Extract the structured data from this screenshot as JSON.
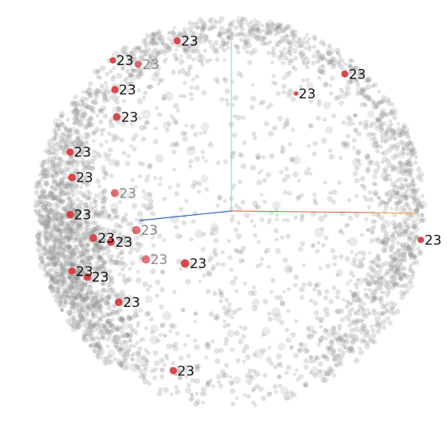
{
  "chart_data": {
    "type": "scatter",
    "title": "",
    "subtitle": "",
    "xlabel": "",
    "ylabel": "",
    "zlabel": "",
    "view": "3d-projection-points-on-sphere",
    "grid": false,
    "legend": "none",
    "axes": {
      "x": {
        "color": "#e8533a",
        "tip_color": "#f39b3a"
      },
      "y": {
        "color": "#7ee07e"
      },
      "z": {
        "color": "#2e62c4"
      }
    },
    "colors": {
      "background": "#ffffff",
      "point": "#8a8a8a",
      "highlight": "#d9343a",
      "label_front": "#111111",
      "label_back": "#888888"
    },
    "background_points": {
      "count": 3600,
      "opacity": 0.25
    },
    "highlighted": [
      {
        "label": "23",
        "x": -0.27,
        "y": 0.88,
        "z": 0.38,
        "front": true
      },
      {
        "label": "23",
        "x": -0.6,
        "y": 0.78,
        "z": 0.1,
        "front": true
      },
      {
        "label": "23",
        "x": -0.47,
        "y": 0.76,
        "z": 0.44,
        "front": false
      },
      {
        "label": "23",
        "x": -0.59,
        "y": 0.63,
        "z": 0.51,
        "front": true
      },
      {
        "label": "23",
        "x": -0.58,
        "y": 0.49,
        "z": 0.66,
        "front": true
      },
      {
        "label": "23",
        "x": 0.59,
        "y": 0.71,
        "z": 0.38,
        "front": true
      },
      {
        "label": "23",
        "x": 0.34,
        "y": 0.61,
        "z": -0.71,
        "front": true
      },
      {
        "label": "23",
        "x": -0.82,
        "y": 0.31,
        "z": 0.48,
        "front": true
      },
      {
        "label": "23",
        "x": -0.81,
        "y": 0.18,
        "z": 0.56,
        "front": true
      },
      {
        "label": "23",
        "x": -0.59,
        "y": 0.1,
        "z": 0.8,
        "front": false
      },
      {
        "label": "23",
        "x": -0.82,
        "y": -0.01,
        "z": 0.57,
        "front": true
      },
      {
        "label": "23",
        "x": -0.7,
        "y": -0.13,
        "z": 0.7,
        "front": true
      },
      {
        "label": "23",
        "x": -0.61,
        "y": -0.15,
        "z": 0.78,
        "front": true
      },
      {
        "label": "23",
        "x": -0.48,
        "y": -0.09,
        "z": 0.87,
        "front": false
      },
      {
        "label": "23",
        "x": -0.43,
        "y": -0.24,
        "z": 0.87,
        "front": false
      },
      {
        "label": "23",
        "x": -0.23,
        "y": -0.26,
        "z": 0.94,
        "front": true
      },
      {
        "label": "23",
        "x": -0.81,
        "y": -0.3,
        "z": 0.5,
        "front": true
      },
      {
        "label": "23",
        "x": -0.73,
        "y": -0.33,
        "z": 0.6,
        "front": true
      },
      {
        "label": "23",
        "x": -0.57,
        "y": -0.46,
        "z": 0.68,
        "front": true
      },
      {
        "label": "23",
        "x": -0.29,
        "y": -0.81,
        "z": 0.51,
        "front": true
      },
      {
        "label": "23",
        "x": 0.98,
        "y": -0.14,
        "z": 0.12,
        "front": true
      }
    ]
  }
}
